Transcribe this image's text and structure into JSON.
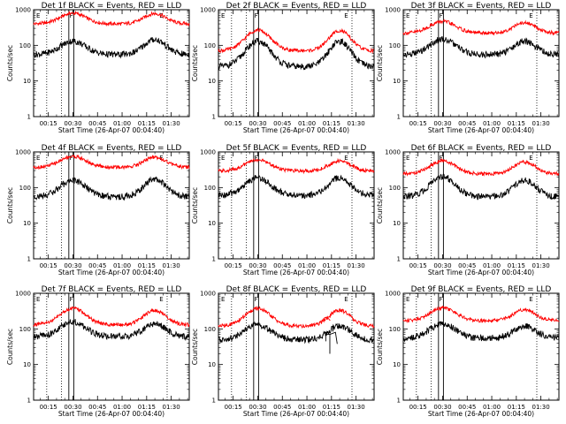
{
  "figure": {
    "xlabel": "Start Time (26-Apr-07 00:04:40)",
    "ylabel": "Counts/sec",
    "x_tick_labels": [
      "00:15",
      "00:30",
      "00:45",
      "01:00",
      "01:15",
      "01:30"
    ],
    "x_tick_minutes": [
      15,
      30,
      45,
      60,
      75,
      90
    ],
    "y_tick_labels": [
      "1",
      "10",
      "100",
      "1000"
    ],
    "colors": {
      "events": "#000000",
      "lld": "#ff0000"
    },
    "markers": {
      "F": "F",
      "E": "E"
    }
  },
  "chart_data": [
    {
      "type": "line",
      "title": "Det 1f BLACK = Events, RED = LLD",
      "xlim": [
        6,
        101
      ],
      "ylim": [
        1,
        1000
      ],
      "yscale": "log",
      "series": [
        {
          "name": "LLD",
          "color": "#ff0000",
          "base": 400,
          "peak1": 800,
          "peak2": 780
        },
        {
          "name": "Events",
          "color": "#000000",
          "base": 55,
          "peak1": 130,
          "peak2": 145
        }
      ]
    },
    {
      "type": "line",
      "title": "Det 2f BLACK = Events, RED = LLD",
      "xlim": [
        6,
        101
      ],
      "ylim": [
        1,
        1000
      ],
      "yscale": "log",
      "series": [
        {
          "name": "LLD",
          "color": "#ff0000",
          "base": 70,
          "peak1": 270,
          "peak2": 260
        },
        {
          "name": "Events",
          "color": "#000000",
          "base": 25,
          "peak1": 130,
          "peak2": 130
        }
      ]
    },
    {
      "type": "line",
      "title": "Det 3f BLACK = Events, RED = LLD",
      "xlim": [
        6,
        101
      ],
      "ylim": [
        1,
        1000
      ],
      "yscale": "log",
      "series": [
        {
          "name": "LLD",
          "color": "#ff0000",
          "base": 220,
          "peak1": 470,
          "peak2": 430
        },
        {
          "name": "Events",
          "color": "#000000",
          "base": 55,
          "peak1": 150,
          "peak2": 130
        }
      ]
    },
    {
      "type": "line",
      "title": "Det 4f BLACK = Events, RED = LLD",
      "xlim": [
        6,
        101
      ],
      "ylim": [
        1,
        1000
      ],
      "yscale": "log",
      "series": [
        {
          "name": "LLD",
          "color": "#ff0000",
          "base": 370,
          "peak1": 750,
          "peak2": 720
        },
        {
          "name": "Events",
          "color": "#000000",
          "base": 55,
          "peak1": 160,
          "peak2": 170
        }
      ]
    },
    {
      "type": "line",
      "title": "Det 5f BLACK = Events, RED = LLD",
      "xlim": [
        6,
        101
      ],
      "ylim": [
        1,
        1000
      ],
      "yscale": "log",
      "series": [
        {
          "name": "LLD",
          "color": "#ff0000",
          "base": 290,
          "peak1": 600,
          "peak2": 560
        },
        {
          "name": "Events",
          "color": "#000000",
          "base": 60,
          "peak1": 190,
          "peak2": 190
        }
      ]
    },
    {
      "type": "line",
      "title": "Det 6f BLACK = Events, RED = LLD",
      "xlim": [
        6,
        101
      ],
      "ylim": [
        1,
        1000
      ],
      "yscale": "log",
      "series": [
        {
          "name": "LLD",
          "color": "#ff0000",
          "base": 240,
          "peak1": 560,
          "peak2": 520
        },
        {
          "name": "Events",
          "color": "#000000",
          "base": 55,
          "peak1": 200,
          "peak2": 160
        }
      ]
    },
    {
      "type": "line",
      "title": "Det 7f BLACK = Events, RED = LLD",
      "xlim": [
        6,
        101
      ],
      "ylim": [
        1,
        1000
      ],
      "yscale": "log",
      "series": [
        {
          "name": "LLD",
          "color": "#ff0000",
          "base": 130,
          "peak1": 380,
          "peak2": 330
        },
        {
          "name": "Events",
          "color": "#000000",
          "base": 60,
          "peak1": 160,
          "peak2": 140
        }
      ]
    },
    {
      "type": "line",
      "title": "Det 8f BLACK = Events, RED = LLD",
      "xlim": [
        6,
        101
      ],
      "ylim": [
        1,
        1000
      ],
      "yscale": "log",
      "series": [
        {
          "name": "LLD",
          "color": "#ff0000",
          "base": 120,
          "peak1": 370,
          "peak2": 330
        },
        {
          "name": "Events",
          "color": "#000000",
          "base": 50,
          "peak1": 130,
          "peak2": 120
        }
      ]
    },
    {
      "type": "line",
      "title": "Det 9f BLACK = Events, RED = LLD",
      "xlim": [
        6,
        101
      ],
      "ylim": [
        1,
        1000
      ],
      "yscale": "log",
      "series": [
        {
          "name": "LLD",
          "color": "#ff0000",
          "base": 170,
          "peak1": 390,
          "peak2": 340
        },
        {
          "name": "Events",
          "color": "#000000",
          "base": 55,
          "peak1": 140,
          "peak2": 120
        }
      ]
    }
  ]
}
